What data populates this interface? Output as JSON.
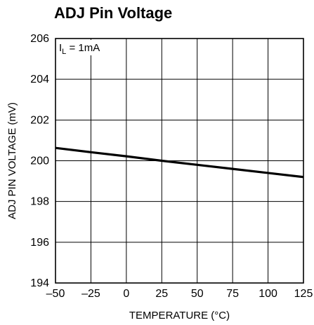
{
  "chart_data": {
    "type": "line",
    "title": "ADJ Pin Voltage",
    "xlabel": "TEMPERATURE (°C)",
    "ylabel": "ADJ PIN VOLTAGE (mV)",
    "xlim": [
      -50,
      125
    ],
    "ylim": [
      194,
      206
    ],
    "xticks": [
      -50,
      -25,
      0,
      25,
      50,
      75,
      100,
      125
    ],
    "xtick_labels": [
      "–50",
      "–25",
      "0",
      "25",
      "50",
      "75",
      "100",
      "125"
    ],
    "yticks": [
      194,
      196,
      198,
      200,
      202,
      204,
      206
    ],
    "ytick_labels": [
      "194",
      "196",
      "198",
      "200",
      "202",
      "204",
      "206"
    ],
    "grid": true,
    "annotation": {
      "main": "I",
      "subscript": "L",
      "suffix": " = 1mA"
    },
    "series": [
      {
        "x": [
          -50,
          -25,
          0,
          25,
          50,
          75,
          100,
          125
        ],
        "y": [
          200.63,
          200.42,
          200.22,
          200.0,
          199.8,
          199.6,
          199.4,
          199.2
        ]
      }
    ]
  },
  "colors": {
    "line": "#000000",
    "grid": "#000000",
    "background": "#ffffff"
  }
}
